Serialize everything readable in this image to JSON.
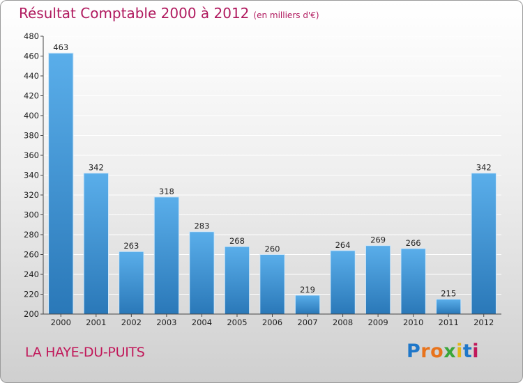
{
  "header": {
    "title": "Résultat Comptable 2000 à 2012",
    "unit": "(en milliers d'€)"
  },
  "footer": {
    "city": "LA HAYE-DU-PUITS",
    "logo_letters": [
      "P",
      "r",
      "o",
      "x",
      "i",
      "t",
      "i"
    ]
  },
  "colors": {
    "title": "#b0195e",
    "bar_light": "#5aaeea",
    "bar_dark": "#2a78b8",
    "grid": "#ffffff"
  },
  "chart_data": {
    "type": "bar",
    "title": "Résultat Comptable 2000 à 2012",
    "subtitle": "(en milliers d'€)",
    "xlabel": "",
    "ylabel": "",
    "categories": [
      "2000",
      "2001",
      "2002",
      "2003",
      "2004",
      "2005",
      "2006",
      "2007",
      "2008",
      "2009",
      "2010",
      "2011",
      "2012"
    ],
    "values": [
      463,
      342,
      263,
      318,
      283,
      268,
      260,
      219,
      264,
      269,
      266,
      215,
      342
    ],
    "ylim": [
      200,
      480
    ],
    "yticks": [
      200,
      220,
      240,
      260,
      280,
      300,
      320,
      340,
      360,
      380,
      400,
      420,
      440,
      460,
      480
    ],
    "grid": true,
    "data_labels": true
  }
}
